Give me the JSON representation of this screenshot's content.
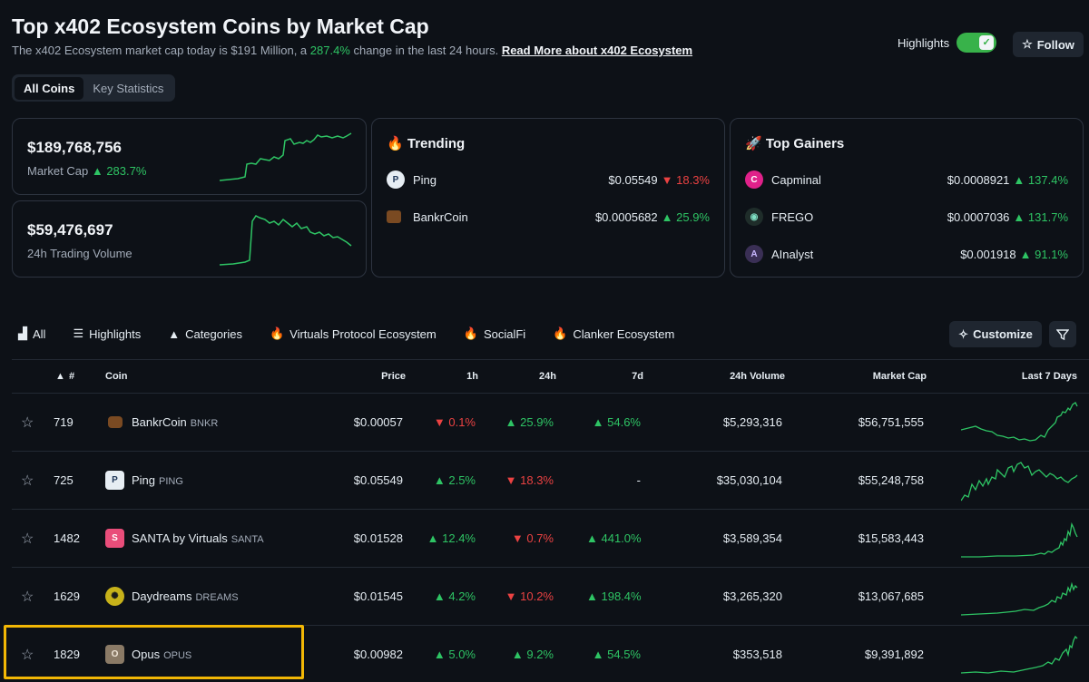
{
  "header": {
    "title": "Top x402 Ecosystem Coins by Market Cap",
    "subtitle_prefix": "The x402 Ecosystem market cap today is $191 Million, a ",
    "subtitle_change": "287.4%",
    "subtitle_suffix": " change in the last 24 hours. ",
    "read_more": "Read More about x402 Ecosystem",
    "highlights_label": "Highlights",
    "follow_label": "Follow"
  },
  "segment": {
    "all_coins": "All Coins",
    "key_statistics": "Key Statistics"
  },
  "market_cap": {
    "value": "$189,768,756",
    "label": "Market Cap",
    "change": "283.7%"
  },
  "volume": {
    "value": "$59,476,697",
    "label": "24h Trading Volume"
  },
  "trending": {
    "title": "Trending",
    "items": [
      {
        "name": "Ping",
        "price": "$0.05549",
        "change": "18.3%",
        "dir": "down"
      },
      {
        "name": "BankrCoin",
        "price": "$0.0005682",
        "change": "25.9%",
        "dir": "up"
      }
    ]
  },
  "gainers": {
    "title": "Top Gainers",
    "items": [
      {
        "name": "Capminal",
        "price": "$0.0008921",
        "change": "137.4%",
        "dir": "up"
      },
      {
        "name": "FREGO",
        "price": "$0.0007036",
        "change": "131.7%",
        "dir": "up"
      },
      {
        "name": "AInalyst",
        "price": "$0.001918",
        "change": "91.1%",
        "dir": "up"
      }
    ]
  },
  "tabs": [
    "All",
    "Highlights",
    "Categories",
    "Virtuals Protocol Ecosystem",
    "SocialFi",
    "Clanker Ecosystem"
  ],
  "customize_label": "Customize",
  "table": {
    "headers": {
      "rank": "#",
      "coin": "Coin",
      "price": "Price",
      "h1": "1h",
      "h24": "24h",
      "d7": "7d",
      "volume": "24h Volume",
      "mcap": "Market Cap",
      "last7": "Last 7 Days"
    },
    "rows": [
      {
        "rank": "719",
        "name": "BankrCoin",
        "symbol": "BNKR",
        "price": "$0.00057",
        "h1": "0.1%",
        "h1dir": "down",
        "h24": "25.9%",
        "h24dir": "up",
        "d7": "54.6%",
        "d7dir": "up",
        "volume": "$5,293,316",
        "mcap": "$56,751,555"
      },
      {
        "rank": "725",
        "name": "Ping",
        "symbol": "PING",
        "price": "$0.05549",
        "h1": "2.5%",
        "h1dir": "up",
        "h24": "18.3%",
        "h24dir": "down",
        "d7": "-",
        "d7dir": "none",
        "volume": "$35,030,104",
        "mcap": "$55,248,758"
      },
      {
        "rank": "1482",
        "name": "SANTA by Virtuals",
        "symbol": "SANTA",
        "price": "$0.01528",
        "h1": "12.4%",
        "h1dir": "up",
        "h24": "0.7%",
        "h24dir": "down",
        "d7": "441.0%",
        "d7dir": "up",
        "volume": "$3,589,354",
        "mcap": "$15,583,443"
      },
      {
        "rank": "1629",
        "name": "Daydreams",
        "symbol": "DREAMS",
        "price": "$0.01545",
        "h1": "4.2%",
        "h1dir": "up",
        "h24": "10.2%",
        "h24dir": "down",
        "d7": "198.4%",
        "d7dir": "up",
        "volume": "$3,265,320",
        "mcap": "$13,067,685"
      },
      {
        "rank": "1829",
        "name": "Opus",
        "symbol": "OPUS",
        "price": "$0.00982",
        "h1": "5.0%",
        "h1dir": "up",
        "h24": "9.2%",
        "h24dir": "up",
        "d7": "54.5%",
        "d7dir": "up",
        "volume": "$353,518",
        "mcap": "$9,391,892"
      }
    ]
  },
  "colors": {
    "up": "#2ec464",
    "down": "#eb4242",
    "highlight": "#f2b705",
    "accent": "#38b24a"
  }
}
